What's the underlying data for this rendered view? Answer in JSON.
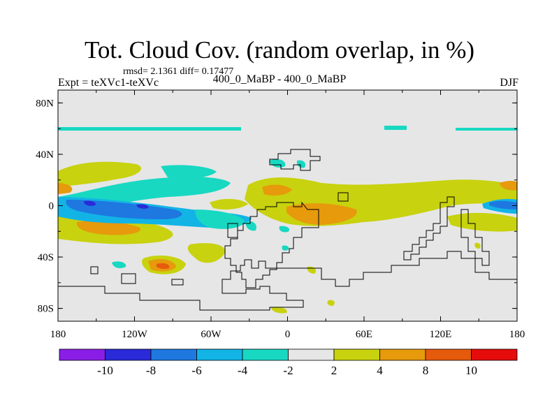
{
  "title": "Tot. Cloud Cov. (random overlap, in %)",
  "stats": "rmsd= 2.1361 diff= 0.17477",
  "left_label": "Expt = teXVc1-teXVc",
  "center_label": "400_0_MaBP - 400_0_MaBP",
  "right_label": "DJF",
  "chart_data": {
    "type": "heatmap",
    "x_ticks": [
      "180",
      "120W",
      "60W",
      "0",
      "60E",
      "120E",
      "180"
    ],
    "y_ticks": [
      "80N",
      "40N",
      "0",
      "40S",
      "80S"
    ],
    "xlim": [
      -180,
      180
    ],
    "ylim": [
      -90,
      90
    ],
    "colorbar": {
      "labels": [
        "-10",
        "-8",
        "-6",
        "-4",
        "-2",
        "2",
        "4",
        "8",
        "10"
      ],
      "colors": [
        "#8a1ee6",
        "#2a2ad8",
        "#1e78e0",
        "#12b4e6",
        "#18d8c2",
        "#e6e6e6",
        "#c8d20e",
        "#e69a0c",
        "#e65a0c",
        "#e60c0c"
      ]
    },
    "field": [
      {
        "lon": -180,
        "lat": 4,
        "value": -6
      },
      {
        "lon": -130,
        "lat": 0,
        "value": -8
      },
      {
        "lon": -90,
        "lat": -4,
        "value": -6
      },
      {
        "lon": -110,
        "lat": 12,
        "value": -4
      },
      {
        "lon": -40,
        "lat": 22,
        "value": -4
      },
      {
        "lon": -120,
        "lat": -18,
        "value": 4
      },
      {
        "lon": -100,
        "lat": -48,
        "value": 8
      },
      {
        "lon": 30,
        "lat": -8,
        "value": 4
      },
      {
        "lon": 10,
        "lat": 12,
        "value": 4
      },
      {
        "lon": 170,
        "lat": 0,
        "value": -4
      },
      {
        "lon": -140,
        "lat": 15,
        "value": 2
      },
      {
        "lon": 80,
        "lat": 8,
        "value": 2
      },
      {
        "lon": 160,
        "lat": -12,
        "value": 2
      },
      {
        "lon": 0,
        "lat": 60,
        "value": -2
      },
      {
        "lon": 130,
        "lat": 60,
        "value": -2
      }
    ]
  }
}
